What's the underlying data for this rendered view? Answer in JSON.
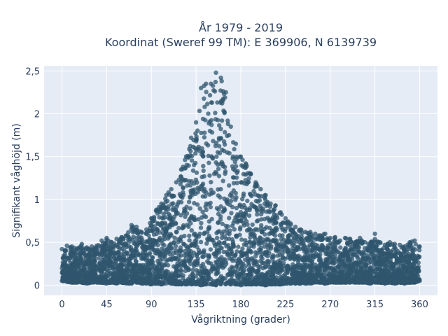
{
  "chart_data": {
    "type": "scatter",
    "title_lines": [
      "År 1979 - 2019",
      "Koordinat (Sweref 99 TM): E 369906, N 6139739"
    ],
    "xlabel": "Vågriktning (grader)",
    "ylabel": "Signifikant våghöjd (m)",
    "xlim": [
      -18,
      378
    ],
    "ylim": [
      -0.12,
      2.56
    ],
    "x_ticks": [
      0,
      45,
      90,
      135,
      180,
      225,
      270,
      315,
      360
    ],
    "x_tick_labels": [
      "0",
      "45",
      "90",
      "135",
      "180",
      "225",
      "270",
      "315",
      "360"
    ],
    "y_ticks": [
      0,
      0.5,
      1,
      1.5,
      2,
      2.5
    ],
    "y_tick_labels": [
      "0",
      "0,5",
      "1",
      "1,5",
      "2",
      "2,5"
    ],
    "grid": true,
    "colors": {
      "plot_bg": "#e5ecf6",
      "marker": "#2f566e",
      "text": "#2a3f5f"
    },
    "x": [
      0,
      5,
      10,
      15,
      20,
      25,
      30,
      35,
      40,
      45,
      50,
      55,
      60,
      65,
      70,
      75,
      80,
      85,
      90,
      95,
      100,
      105,
      110,
      115,
      120,
      125,
      130,
      135,
      140,
      145,
      150,
      155,
      160,
      165,
      170,
      175,
      180,
      185,
      190,
      195,
      200,
      205,
      210,
      215,
      220,
      225,
      230,
      235,
      240,
      245,
      250,
      255,
      260,
      265,
      270,
      275,
      280,
      285,
      290,
      295,
      300,
      305,
      310,
      315,
      320,
      325,
      330,
      335,
      340,
      345,
      350,
      355,
      360
    ],
    "y_max": [
      0.42,
      0.46,
      0.45,
      0.42,
      0.48,
      0.44,
      0.45,
      0.46,
      0.52,
      0.55,
      0.5,
      0.54,
      0.56,
      0.58,
      0.7,
      0.68,
      0.62,
      0.65,
      0.78,
      0.88,
      0.95,
      1.05,
      1.12,
      1.2,
      1.35,
      1.5,
      1.72,
      1.9,
      2.3,
      2.35,
      2.35,
      2.48,
      2.42,
      2.25,
      1.85,
      1.65,
      1.5,
      1.42,
      1.3,
      1.2,
      1.12,
      1.05,
      0.95,
      0.93,
      0.85,
      0.78,
      0.72,
      0.68,
      0.65,
      0.62,
      0.62,
      0.6,
      0.58,
      0.6,
      0.55,
      0.56,
      0.52,
      0.55,
      0.54,
      0.5,
      0.55,
      0.5,
      0.48,
      0.6,
      0.5,
      0.47,
      0.5,
      0.48,
      0.47,
      0.45,
      0.5,
      0.52,
      0.45
    ],
    "y_min": [
      0.05,
      0.04,
      0.03,
      0.03,
      0.03,
      0.02,
      0.03,
      0.03,
      0.03,
      0.02,
      0.03,
      0.02,
      0.03,
      0.02,
      0.02,
      0.03,
      0.02,
      0.02,
      0.01,
      0.02,
      0.01,
      0.02,
      0.02,
      0.01,
      0.01,
      0.01,
      0.01,
      0.01,
      0.0,
      0.01,
      0.01,
      0.0,
      0.01,
      0.01,
      0.01,
      0.01,
      0.0,
      0.01,
      0.01,
      0.01,
      0.01,
      0.0,
      0.01,
      0.01,
      0.01,
      0.02,
      0.02,
      0.02,
      0.02,
      0.02,
      0.02,
      0.03,
      0.03,
      0.02,
      0.03,
      0.03,
      0.03,
      0.03,
      0.03,
      0.03,
      0.03,
      0.03,
      0.02,
      0.03,
      0.03,
      0.02,
      0.03,
      0.02,
      0.03,
      0.02,
      0.03,
      0.03,
      0.05
    ]
  }
}
